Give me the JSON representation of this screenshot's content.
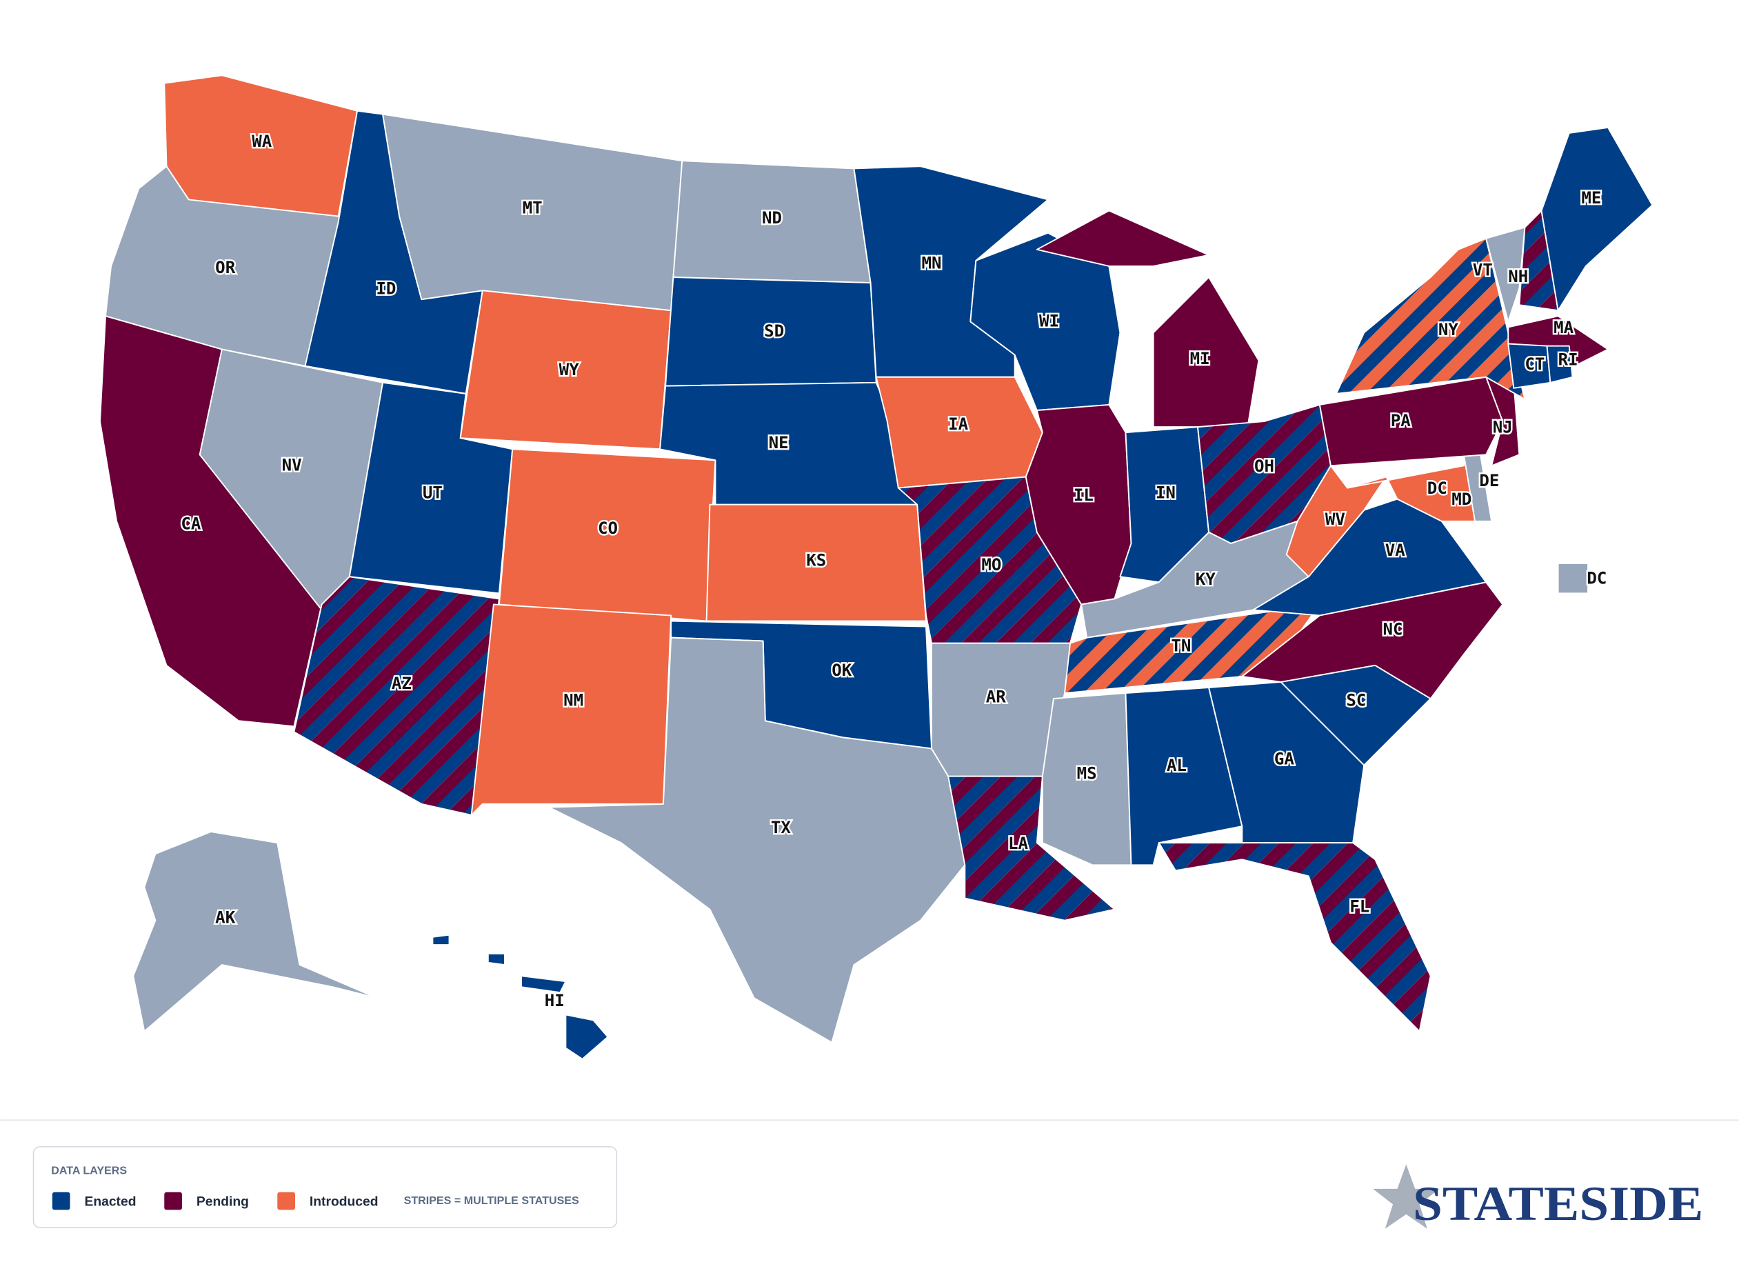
{
  "map": {
    "no_status_color": "#97a6ba",
    "states": [
      {
        "label": "WA",
        "statuses": [
          "Introduced"
        ]
      },
      {
        "label": "OR",
        "statuses": []
      },
      {
        "label": "CA",
        "statuses": [
          "Pending"
        ]
      },
      {
        "label": "ID",
        "statuses": [
          "Enacted"
        ]
      },
      {
        "label": "NV",
        "statuses": []
      },
      {
        "label": "MT",
        "statuses": []
      },
      {
        "label": "WY",
        "statuses": [
          "Introduced"
        ]
      },
      {
        "label": "UT",
        "statuses": [
          "Enacted"
        ]
      },
      {
        "label": "AZ",
        "statuses": [
          "Enacted",
          "Pending"
        ]
      },
      {
        "label": "CO",
        "statuses": [
          "Introduced"
        ]
      },
      {
        "label": "NM",
        "statuses": [
          "Introduced"
        ]
      },
      {
        "label": "ND",
        "statuses": []
      },
      {
        "label": "SD",
        "statuses": [
          "Enacted"
        ]
      },
      {
        "label": "NE",
        "statuses": [
          "Enacted"
        ]
      },
      {
        "label": "KS",
        "statuses": [
          "Introduced"
        ]
      },
      {
        "label": "OK",
        "statuses": [
          "Enacted"
        ]
      },
      {
        "label": "TX",
        "statuses": []
      },
      {
        "label": "MN",
        "statuses": [
          "Enacted"
        ]
      },
      {
        "label": "IA",
        "statuses": [
          "Introduced"
        ]
      },
      {
        "label": "MO",
        "statuses": [
          "Enacted",
          "Pending"
        ]
      },
      {
        "label": "AR",
        "statuses": []
      },
      {
        "label": "LA",
        "statuses": [
          "Enacted",
          "Pending"
        ]
      },
      {
        "label": "WI",
        "statuses": [
          "Enacted"
        ]
      },
      {
        "label": "IL",
        "statuses": [
          "Pending"
        ]
      },
      {
        "label": "MI",
        "statuses": [
          "Pending"
        ]
      },
      {
        "label": "IN",
        "statuses": [
          "Enacted"
        ]
      },
      {
        "label": "OH",
        "statuses": [
          "Enacted",
          "Pending"
        ]
      },
      {
        "label": "KY",
        "statuses": []
      },
      {
        "label": "TN",
        "statuses": [
          "Enacted",
          "Introduced"
        ]
      },
      {
        "label": "MS",
        "statuses": []
      },
      {
        "label": "AL",
        "statuses": [
          "Enacted"
        ]
      },
      {
        "label": "GA",
        "statuses": [
          "Enacted"
        ]
      },
      {
        "label": "FL",
        "statuses": [
          "Enacted",
          "Pending"
        ]
      },
      {
        "label": "SC",
        "statuses": [
          "Enacted"
        ]
      },
      {
        "label": "NC",
        "statuses": [
          "Pending"
        ]
      },
      {
        "label": "VA",
        "statuses": [
          "Enacted"
        ]
      },
      {
        "label": "WV",
        "statuses": [
          "Introduced"
        ]
      },
      {
        "label": "MD",
        "statuses": [
          "Introduced"
        ]
      },
      {
        "label": "DE",
        "statuses": []
      },
      {
        "label": "NJ",
        "statuses": [
          "Pending"
        ]
      },
      {
        "label": "PA",
        "statuses": [
          "Pending"
        ]
      },
      {
        "label": "NY",
        "statuses": [
          "Enacted",
          "Introduced"
        ]
      },
      {
        "label": "VT",
        "statuses": []
      },
      {
        "label": "NH",
        "statuses": [
          "Enacted",
          "Pending"
        ]
      },
      {
        "label": "ME",
        "statuses": [
          "Enacted"
        ]
      },
      {
        "label": "MA",
        "statuses": [
          "Pending"
        ]
      },
      {
        "label": "CT",
        "statuses": [
          "Enacted"
        ]
      },
      {
        "label": "RI",
        "statuses": [
          "Enacted"
        ]
      },
      {
        "label": "AK",
        "statuses": []
      },
      {
        "label": "HI",
        "statuses": [
          "Enacted"
        ]
      },
      {
        "label": "DC",
        "statuses": []
      }
    ]
  },
  "legend": {
    "title": "DATA LAYERS",
    "items": [
      {
        "name": "Enacted",
        "color": "#003f87"
      },
      {
        "name": "Pending",
        "color": "#6b0039"
      },
      {
        "name": "Introduced",
        "color": "#ee6644"
      }
    ],
    "note": "STRIPES = MULTIPLE STATUSES"
  },
  "logo": "STATESIDE"
}
